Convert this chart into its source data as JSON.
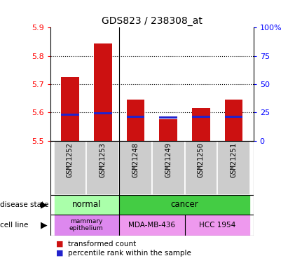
{
  "title": "GDS823 / 238308_at",
  "samples": [
    "GSM21252",
    "GSM21253",
    "GSM21248",
    "GSM21249",
    "GSM21250",
    "GSM21251"
  ],
  "red_bar_tops": [
    5.725,
    5.845,
    5.645,
    5.575,
    5.615,
    5.645
  ],
  "blue_marker_vals": [
    5.592,
    5.598,
    5.585,
    5.583,
    5.585,
    5.585
  ],
  "y_min": 5.5,
  "y_max": 5.9,
  "y_ticks": [
    5.5,
    5.6,
    5.7,
    5.8,
    5.9
  ],
  "y_tick_labels": [
    "5.5",
    "5.6",
    "5.7",
    "5.8",
    "5.9"
  ],
  "right_y_ticks": [
    0,
    25,
    50,
    75,
    100
  ],
  "right_y_tick_labels": [
    "0",
    "25",
    "50",
    "75",
    "100%"
  ],
  "bar_color": "#cc1111",
  "blue_color": "#2222cc",
  "bar_width": 0.55,
  "normal_color": "#aaffaa",
  "cancer_color": "#44cc44",
  "mammary_color": "#dd88ee",
  "mda_color": "#ee99ee",
  "hcc_color": "#ee99ee",
  "sample_bg_color": "#cccccc",
  "legend_red": "transformed count",
  "legend_blue": "percentile rank within the sample",
  "plot_bg": "#ffffff",
  "dotted_line_color": "#000000"
}
